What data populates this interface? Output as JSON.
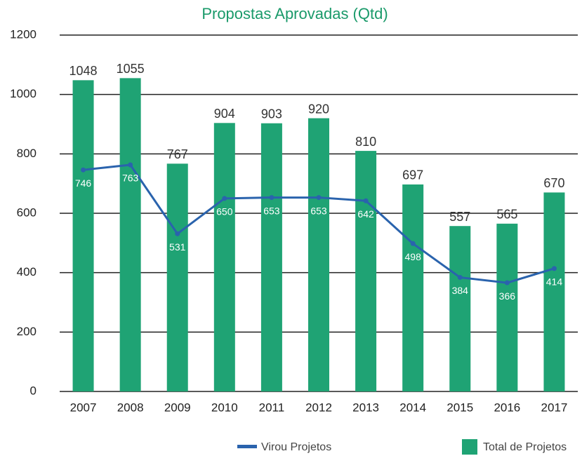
{
  "chart_data": {
    "type": "combo",
    "title": "Propostas Aprovadas (Qtd)",
    "categories": [
      "2007",
      "2008",
      "2009",
      "2010",
      "2011",
      "2012",
      "2013",
      "2014",
      "2015",
      "2016",
      "2017"
    ],
    "series": [
      {
        "name": "Total de Projetos",
        "type": "bar",
        "color": "#1fa374",
        "values": [
          1048,
          1055,
          767,
          904,
          903,
          920,
          810,
          697,
          557,
          565,
          670
        ]
      },
      {
        "name": "Virou Projetos",
        "type": "line",
        "color": "#2a63ad",
        "values": [
          746,
          763,
          531,
          650,
          653,
          653,
          642,
          498,
          384,
          366,
          414
        ]
      }
    ],
    "ylim": [
      0,
      1200
    ],
    "yticks": [
      0,
      200,
      400,
      600,
      800,
      1000,
      1200
    ],
    "grid": true,
    "legend": "bottom"
  }
}
